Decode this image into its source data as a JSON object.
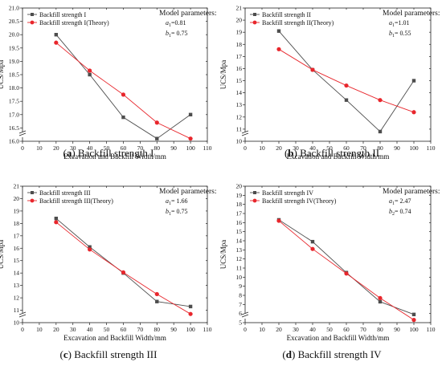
{
  "figure": {
    "panels": [
      {
        "caption_letter": "(a)",
        "caption_text": "Backfill strength I",
        "params_title": "Model parameters:",
        "param_a": "a",
        "param_a_sub": "1",
        "param_a_value": "=0.81",
        "param_b": "b",
        "param_b_sub": "1",
        "param_b_value": "= 0.75"
      },
      {
        "caption_letter": "(b)",
        "caption_text": "Backfill strength II",
        "params_title": "Model parameters:",
        "param_a": "a",
        "param_a_sub": "1",
        "param_a_value": "=1.01",
        "param_b": "b",
        "param_b_sub": "1",
        "param_b_value": "= 0.55"
      },
      {
        "caption_letter": "(c)",
        "caption_text": "Backfill strength III",
        "params_title": "Model parameters:",
        "param_a": "a",
        "param_a_sub": "1",
        "param_a_value": "= 1.66",
        "param_b": "b",
        "param_b_sub": "1",
        "param_b_value": "= 0.75"
      },
      {
        "caption_letter": "(d)",
        "caption_text": "Backfill strength IV",
        "params_title": "Model parameters:",
        "param_a": "a",
        "param_a_sub": "1",
        "param_a_value": "= 2.47",
        "param_b": "b",
        "param_b_sub": "2",
        "param_b_value": "= 0.74"
      }
    ]
  },
  "chart_data": [
    {
      "type": "line",
      "xlabel": "Excavation and Backfill Width/mm",
      "ylabel": "UCS/Mpa",
      "xlim": [
        0,
        110
      ],
      "ylim": [
        16.0,
        21.0
      ],
      "xticks": [
        0,
        10,
        20,
        30,
        40,
        50,
        60,
        70,
        80,
        90,
        100,
        110
      ],
      "yticks": [
        16.0,
        16.5,
        17.0,
        17.5,
        18.0,
        18.5,
        19.0,
        19.5,
        20.0,
        20.5,
        21.0
      ],
      "yticks_label": [
        "16.0",
        "16.5",
        "17.0",
        "17.5",
        "18.0",
        "18.5",
        "19.0",
        "19.5",
        "20.0",
        "20.5",
        "21.0"
      ],
      "axis_break": "y",
      "legend_position": "top-left",
      "series": [
        {
          "name": "Backfill strength I",
          "color": "#4d4d4d",
          "marker": "square",
          "x": [
            20,
            40,
            60,
            80,
            100
          ],
          "values": [
            20.0,
            18.5,
            16.9,
            16.1,
            17.0
          ]
        },
        {
          "name": "Backfill strength I(Theory)",
          "color": "#e8262c",
          "marker": "circle",
          "x": [
            20,
            40,
            60,
            80,
            100
          ],
          "values": [
            19.7,
            18.65,
            17.75,
            16.7,
            16.1
          ]
        }
      ]
    },
    {
      "type": "line",
      "xlabel": "Excavation and Backfill Width/mm",
      "ylabel": "UCS/Mpa",
      "xlim": [
        0,
        110
      ],
      "ylim": [
        10,
        21
      ],
      "xticks": [
        0,
        10,
        20,
        30,
        40,
        50,
        60,
        70,
        80,
        90,
        100,
        110
      ],
      "yticks": [
        10,
        11,
        12,
        13,
        14,
        15,
        16,
        17,
        18,
        19,
        20,
        21
      ],
      "yticks_label": [
        "10",
        "11",
        "12",
        "13",
        "14",
        "15",
        "16",
        "17",
        "18",
        "19",
        "20",
        "21"
      ],
      "axis_break": "y",
      "legend_position": "top-left",
      "series": [
        {
          "name": "Backfill strength II",
          "color": "#4d4d4d",
          "marker": "square",
          "x": [
            20,
            40,
            60,
            80,
            100
          ],
          "values": [
            19.1,
            15.9,
            13.4,
            10.8,
            15.0
          ]
        },
        {
          "name": "Backfill strength II(Theory)",
          "color": "#e8262c",
          "marker": "circle",
          "x": [
            20,
            40,
            60,
            80,
            100
          ],
          "values": [
            17.6,
            15.9,
            14.6,
            13.4,
            12.4
          ]
        }
      ]
    },
    {
      "type": "line",
      "xlabel": "Excavation and Backfill Width/mm",
      "ylabel": "UCS/Mpa",
      "xlim": [
        0,
        110
      ],
      "ylim": [
        10,
        21
      ],
      "xticks": [
        0,
        10,
        20,
        30,
        40,
        50,
        60,
        70,
        80,
        90,
        100,
        110
      ],
      "yticks": [
        10,
        11,
        12,
        13,
        14,
        15,
        16,
        17,
        18,
        19,
        20,
        21
      ],
      "yticks_label": [
        "10",
        "11",
        "12",
        "13",
        "14",
        "15",
        "16",
        "17",
        "18",
        "19",
        "20",
        "21"
      ],
      "axis_break": "y",
      "legend_position": "top-left",
      "series": [
        {
          "name": "Backfill strength III",
          "color": "#4d4d4d",
          "marker": "square",
          "x": [
            20,
            40,
            60,
            80,
            100
          ],
          "values": [
            18.4,
            16.1,
            14.0,
            11.7,
            11.3
          ]
        },
        {
          "name": "Backfill strength III(Theory)",
          "color": "#e8262c",
          "marker": "circle",
          "x": [
            20,
            40,
            60,
            80,
            100
          ],
          "values": [
            18.1,
            15.9,
            14.05,
            12.3,
            10.7
          ]
        }
      ]
    },
    {
      "type": "line",
      "xlabel": "Excavation and Backfill Width/mm",
      "ylabel": "UCS/Mpa",
      "xlim": [
        0,
        110
      ],
      "ylim": [
        5,
        20
      ],
      "xticks": [
        0,
        10,
        20,
        30,
        40,
        50,
        60,
        70,
        80,
        90,
        100,
        110
      ],
      "yticks": [
        5,
        6,
        7,
        8,
        9,
        10,
        11,
        12,
        13,
        14,
        15,
        16,
        17,
        18,
        19,
        20
      ],
      "yticks_label": [
        "5",
        "6",
        "7",
        "8",
        "9",
        "10",
        "11",
        "12",
        "13",
        "14",
        "15",
        "16",
        "17",
        "18",
        "19",
        "20"
      ],
      "axis_break": "y",
      "legend_position": "top-left",
      "series": [
        {
          "name": "Backfill strength IV",
          "color": "#4d4d4d",
          "marker": "square",
          "x": [
            20,
            40,
            60,
            80,
            100
          ],
          "values": [
            16.3,
            13.9,
            10.5,
            7.3,
            5.9
          ]
        },
        {
          "name": "Backfill strength IV(Theory)",
          "color": "#e8262c",
          "marker": "circle",
          "x": [
            20,
            40,
            60,
            80,
            100
          ],
          "values": [
            16.2,
            13.1,
            10.4,
            7.7,
            5.3
          ]
        }
      ]
    }
  ]
}
